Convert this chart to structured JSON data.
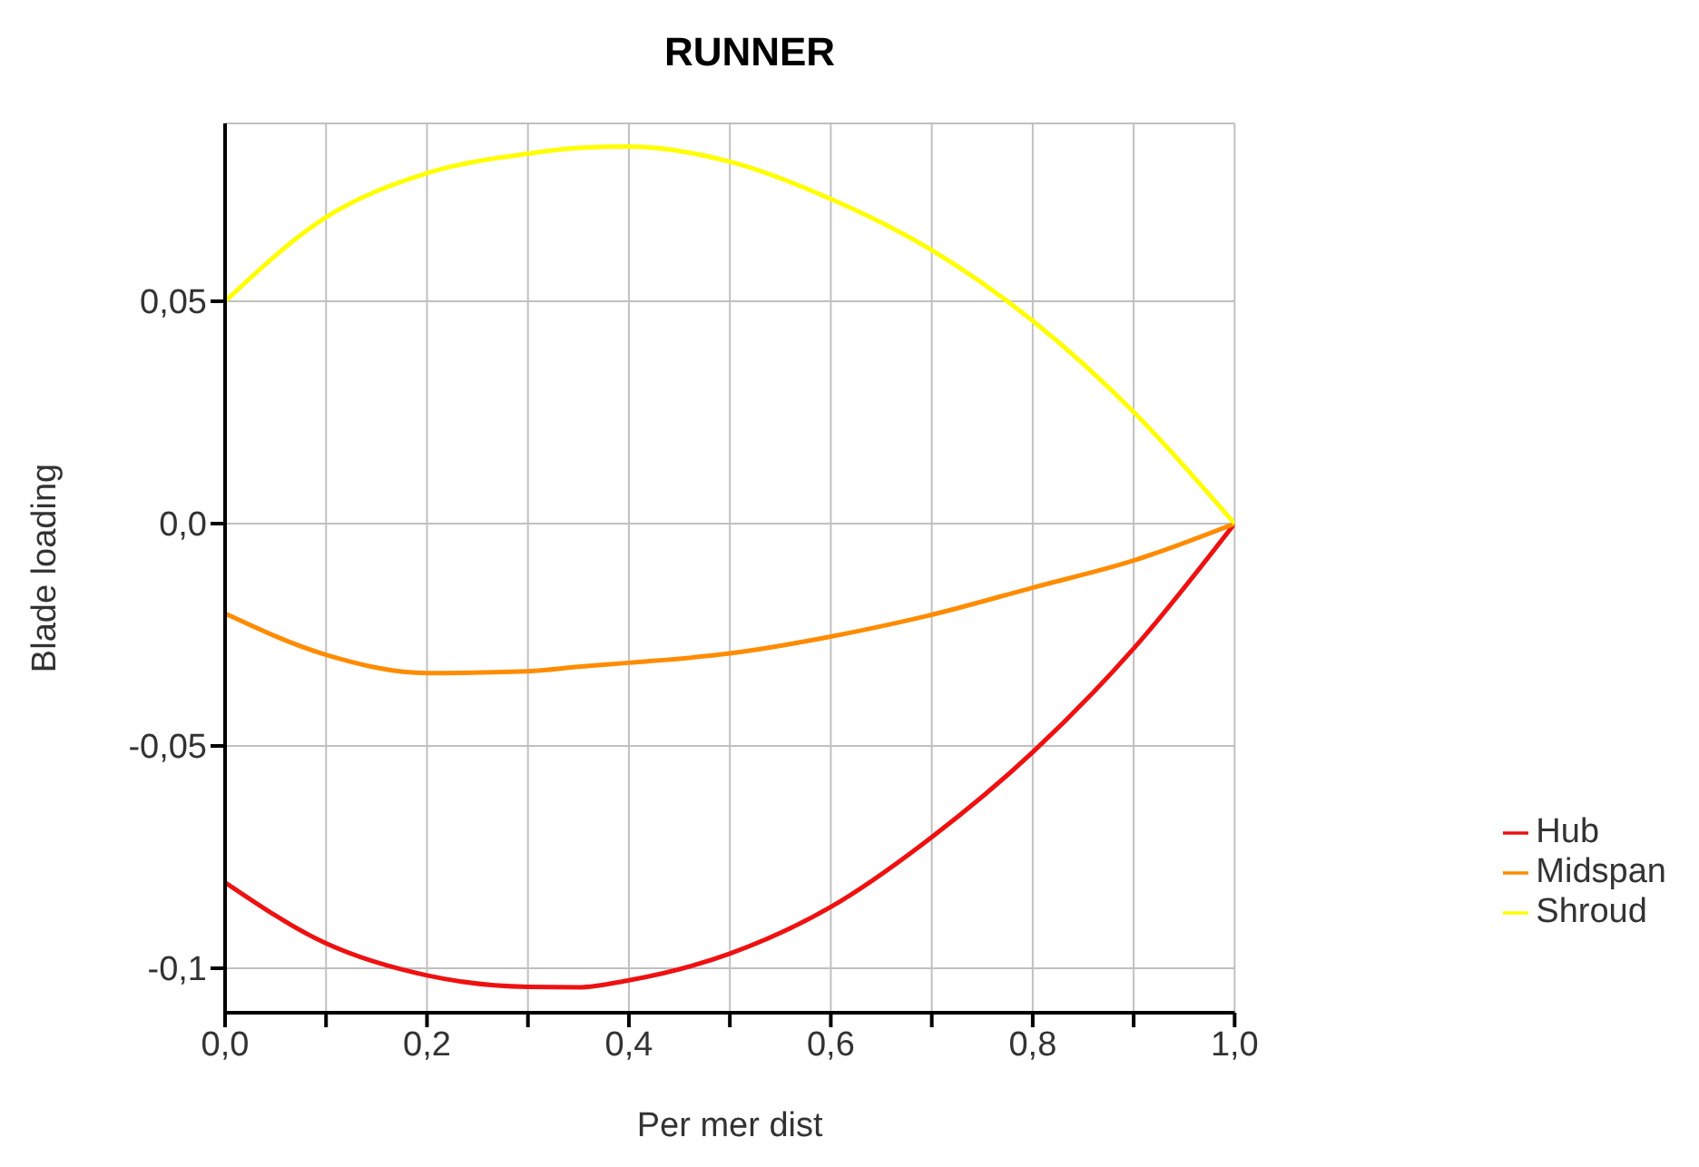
{
  "chart_data": {
    "type": "line",
    "title": "RUNNER",
    "xlabel": "Per mer dist",
    "ylabel": "Blade loading",
    "x": [
      0,
      0.1,
      0.2,
      0.3,
      0.35,
      0.4,
      0.5,
      0.6,
      0.7,
      0.8,
      0.9,
      1.0
    ],
    "series": [
      {
        "name": "Hub",
        "color": "#ee1111",
        "values": [
          -0.0807,
          -0.0944,
          -0.1016,
          -0.1042,
          -0.1043,
          -0.1027,
          -0.0967,
          -0.0862,
          -0.0705,
          -0.0514,
          -0.0281,
          0
        ]
      },
      {
        "name": "Midspan",
        "color": "#ff8c00",
        "values": [
          -0.0202,
          -0.0295,
          -0.0336,
          -0.0332,
          -0.0322,
          -0.0313,
          -0.0292,
          -0.0254,
          -0.0205,
          -0.0144,
          -0.0083,
          0
        ]
      },
      {
        "name": "Shroud",
        "color": "#ffff00",
        "values": [
          0.05,
          0.0689,
          0.0788,
          0.0832,
          0.0845,
          0.0848,
          0.0814,
          0.073,
          0.0615,
          0.0456,
          0.0251,
          0
        ]
      }
    ],
    "xlim": [
      0,
      1
    ],
    "xticks": [
      {
        "value": 0,
        "label": "0,0"
      },
      {
        "value": 0.1,
        "label": null
      },
      {
        "value": 0.2,
        "label": "0,2"
      },
      {
        "value": 0.3,
        "label": null
      },
      {
        "value": 0.4,
        "label": "0,4"
      },
      {
        "value": 0.5,
        "label": null
      },
      {
        "value": 0.6,
        "label": "0,6"
      },
      {
        "value": 0.7,
        "label": null
      },
      {
        "value": 0.8,
        "label": "0,8"
      },
      {
        "value": 0.9,
        "label": null
      },
      {
        "value": 1,
        "label": "1,0"
      }
    ],
    "ylim": [
      -0.11,
      0.09
    ],
    "yticks": [
      {
        "value": -0.1,
        "label": "-0,1"
      },
      {
        "value": -0.05,
        "label": "-0,05"
      },
      {
        "value": 0,
        "label": "0,0"
      },
      {
        "value": 0.05,
        "label": "0,05"
      }
    ],
    "grid": true,
    "legend": "right",
    "marker": "none",
    "line_style": "solid"
  }
}
